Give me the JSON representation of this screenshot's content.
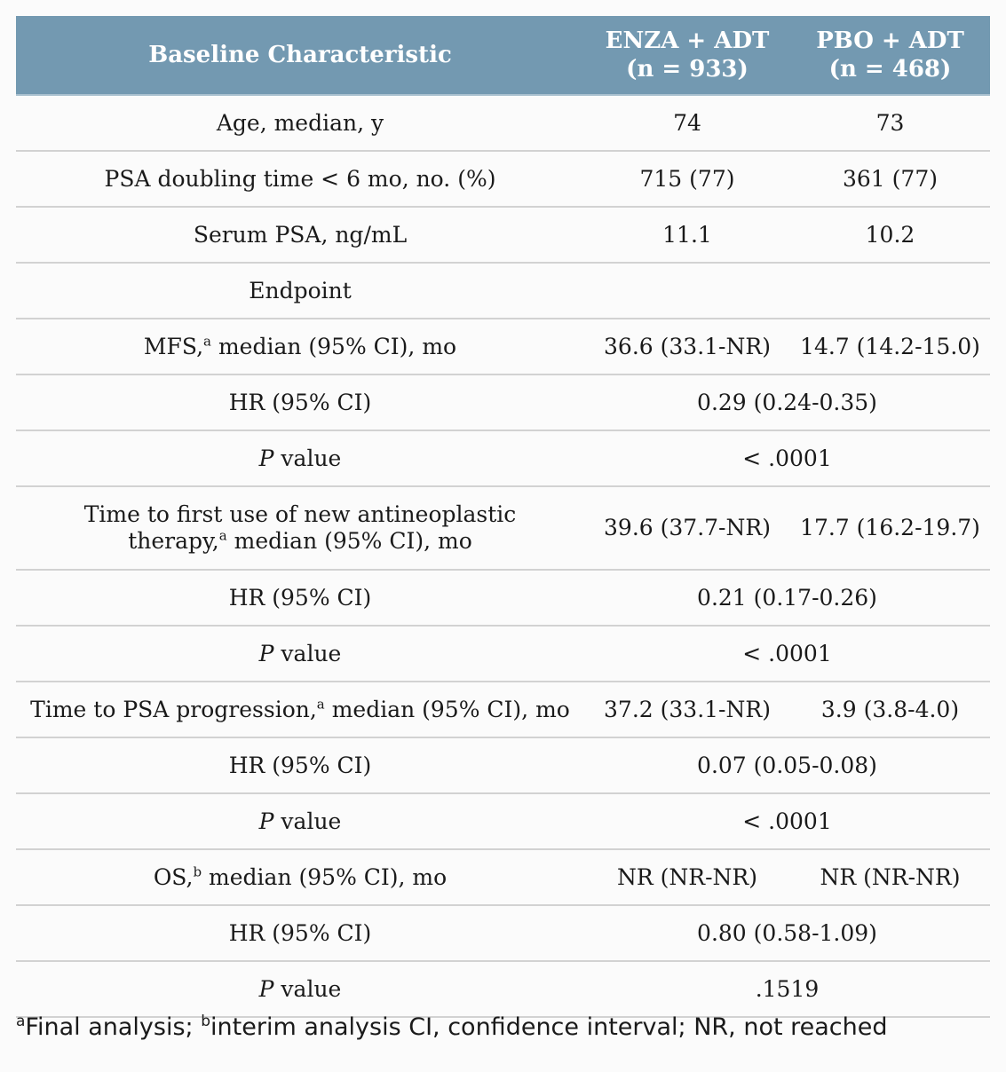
{
  "header": {
    "col1": "Baseline Characteristic",
    "col2_line1": "ENZA + ADT",
    "col2_line2": "(n = 933)",
    "col3_line1": "PBO + ADT",
    "col3_line2": "(n = 468)"
  },
  "rows": {
    "age": {
      "label": "Age, median, y",
      "enza": "74",
      "pbo": "73"
    },
    "psadt": {
      "label": "PSA doubling time < 6 mo, no. (%)",
      "enza": "715 (77)",
      "pbo": "361 (77)"
    },
    "serum": {
      "label": "Serum PSA, ng/mL",
      "enza": "11.1",
      "pbo": "10.2"
    },
    "endpoint": {
      "label": "Endpoint"
    },
    "mfs": {
      "label_a": "MFS,",
      "sup": "a",
      "label_b": " median (95% CI), mo",
      "enza": "36.6 (33.1-NR)",
      "pbo": "14.7 (14.2-15.0)"
    },
    "mfs_hr": {
      "label": "HR (95% CI)",
      "value": "0.29 (0.24-0.35)"
    },
    "mfs_p": {
      "label_it": "P",
      "label_rest": " value",
      "value": "< .0001"
    },
    "ttfu": {
      "label_line1": "Time to first use of new antineoplastic",
      "label_a": "therapy,",
      "sup": "a",
      "label_b": " median (95% CI), mo",
      "enza": "39.6 (37.7-NR)",
      "pbo": "17.7 (16.2-19.7)"
    },
    "ttfu_hr": {
      "label": "HR (95% CI)",
      "value": "0.21 (0.17-0.26)"
    },
    "ttfu_p": {
      "label_it": "P",
      "label_rest": " value",
      "value": "< .0001"
    },
    "psap": {
      "label_a": "Time to PSA progression,",
      "sup": "a",
      "label_b": " median (95% CI), mo",
      "enza": "37.2 (33.1-NR)",
      "pbo": "3.9 (3.8-4.0)"
    },
    "psap_hr": {
      "label": "HR (95% CI)",
      "value": "0.07 (0.05-0.08)"
    },
    "psap_p": {
      "label_it": "P",
      "label_rest": " value",
      "value": "< .0001"
    },
    "os": {
      "label_a": "OS,",
      "sup": "b",
      "label_b": " median (95% CI), mo",
      "enza": "NR (NR-NR)",
      "pbo": "NR (NR-NR)"
    },
    "os_hr": {
      "label": "HR (95% CI)",
      "value": "0.80 (0.58-1.09)"
    },
    "os_p": {
      "label_it": "P",
      "label_rest": " value",
      "value": ".1519"
    }
  },
  "footnote": {
    "sup_a": "a",
    "text_a": "Final analysis; ",
    "sup_b": "b",
    "text_b": "interim analysis CI, confidence interval; NR, not reached"
  }
}
